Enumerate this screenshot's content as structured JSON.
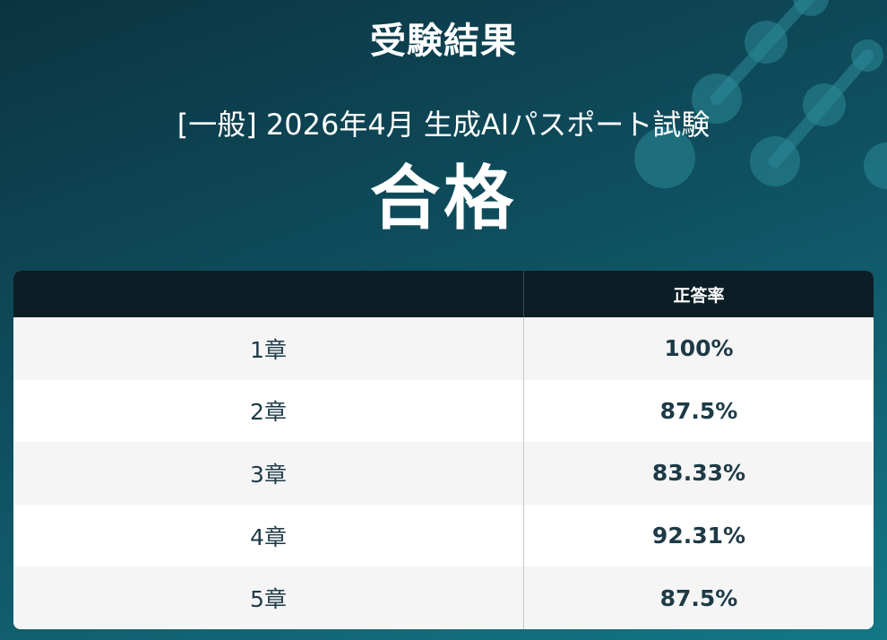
{
  "header": {
    "title": "受験結果",
    "exam_name": "[一般] 2026年4月 生成AIパスポート試験",
    "result": "合格"
  },
  "table": {
    "columns": [
      "",
      "正答率"
    ],
    "rows": [
      {
        "chapter": "1章",
        "rate": "100%"
      },
      {
        "chapter": "2章",
        "rate": "87.5%"
      },
      {
        "chapter": "3章",
        "rate": "83.33%"
      },
      {
        "chapter": "4章",
        "rate": "92.31%"
      },
      {
        "chapter": "5章",
        "rate": "87.5%"
      }
    ]
  },
  "colors": {
    "background_dark": "#0b3441",
    "background_light": "#137786",
    "table_header": "#0b1e25",
    "text_dark": "#1e3a47"
  },
  "decorations": {
    "icon": "network-nodes-icon"
  }
}
